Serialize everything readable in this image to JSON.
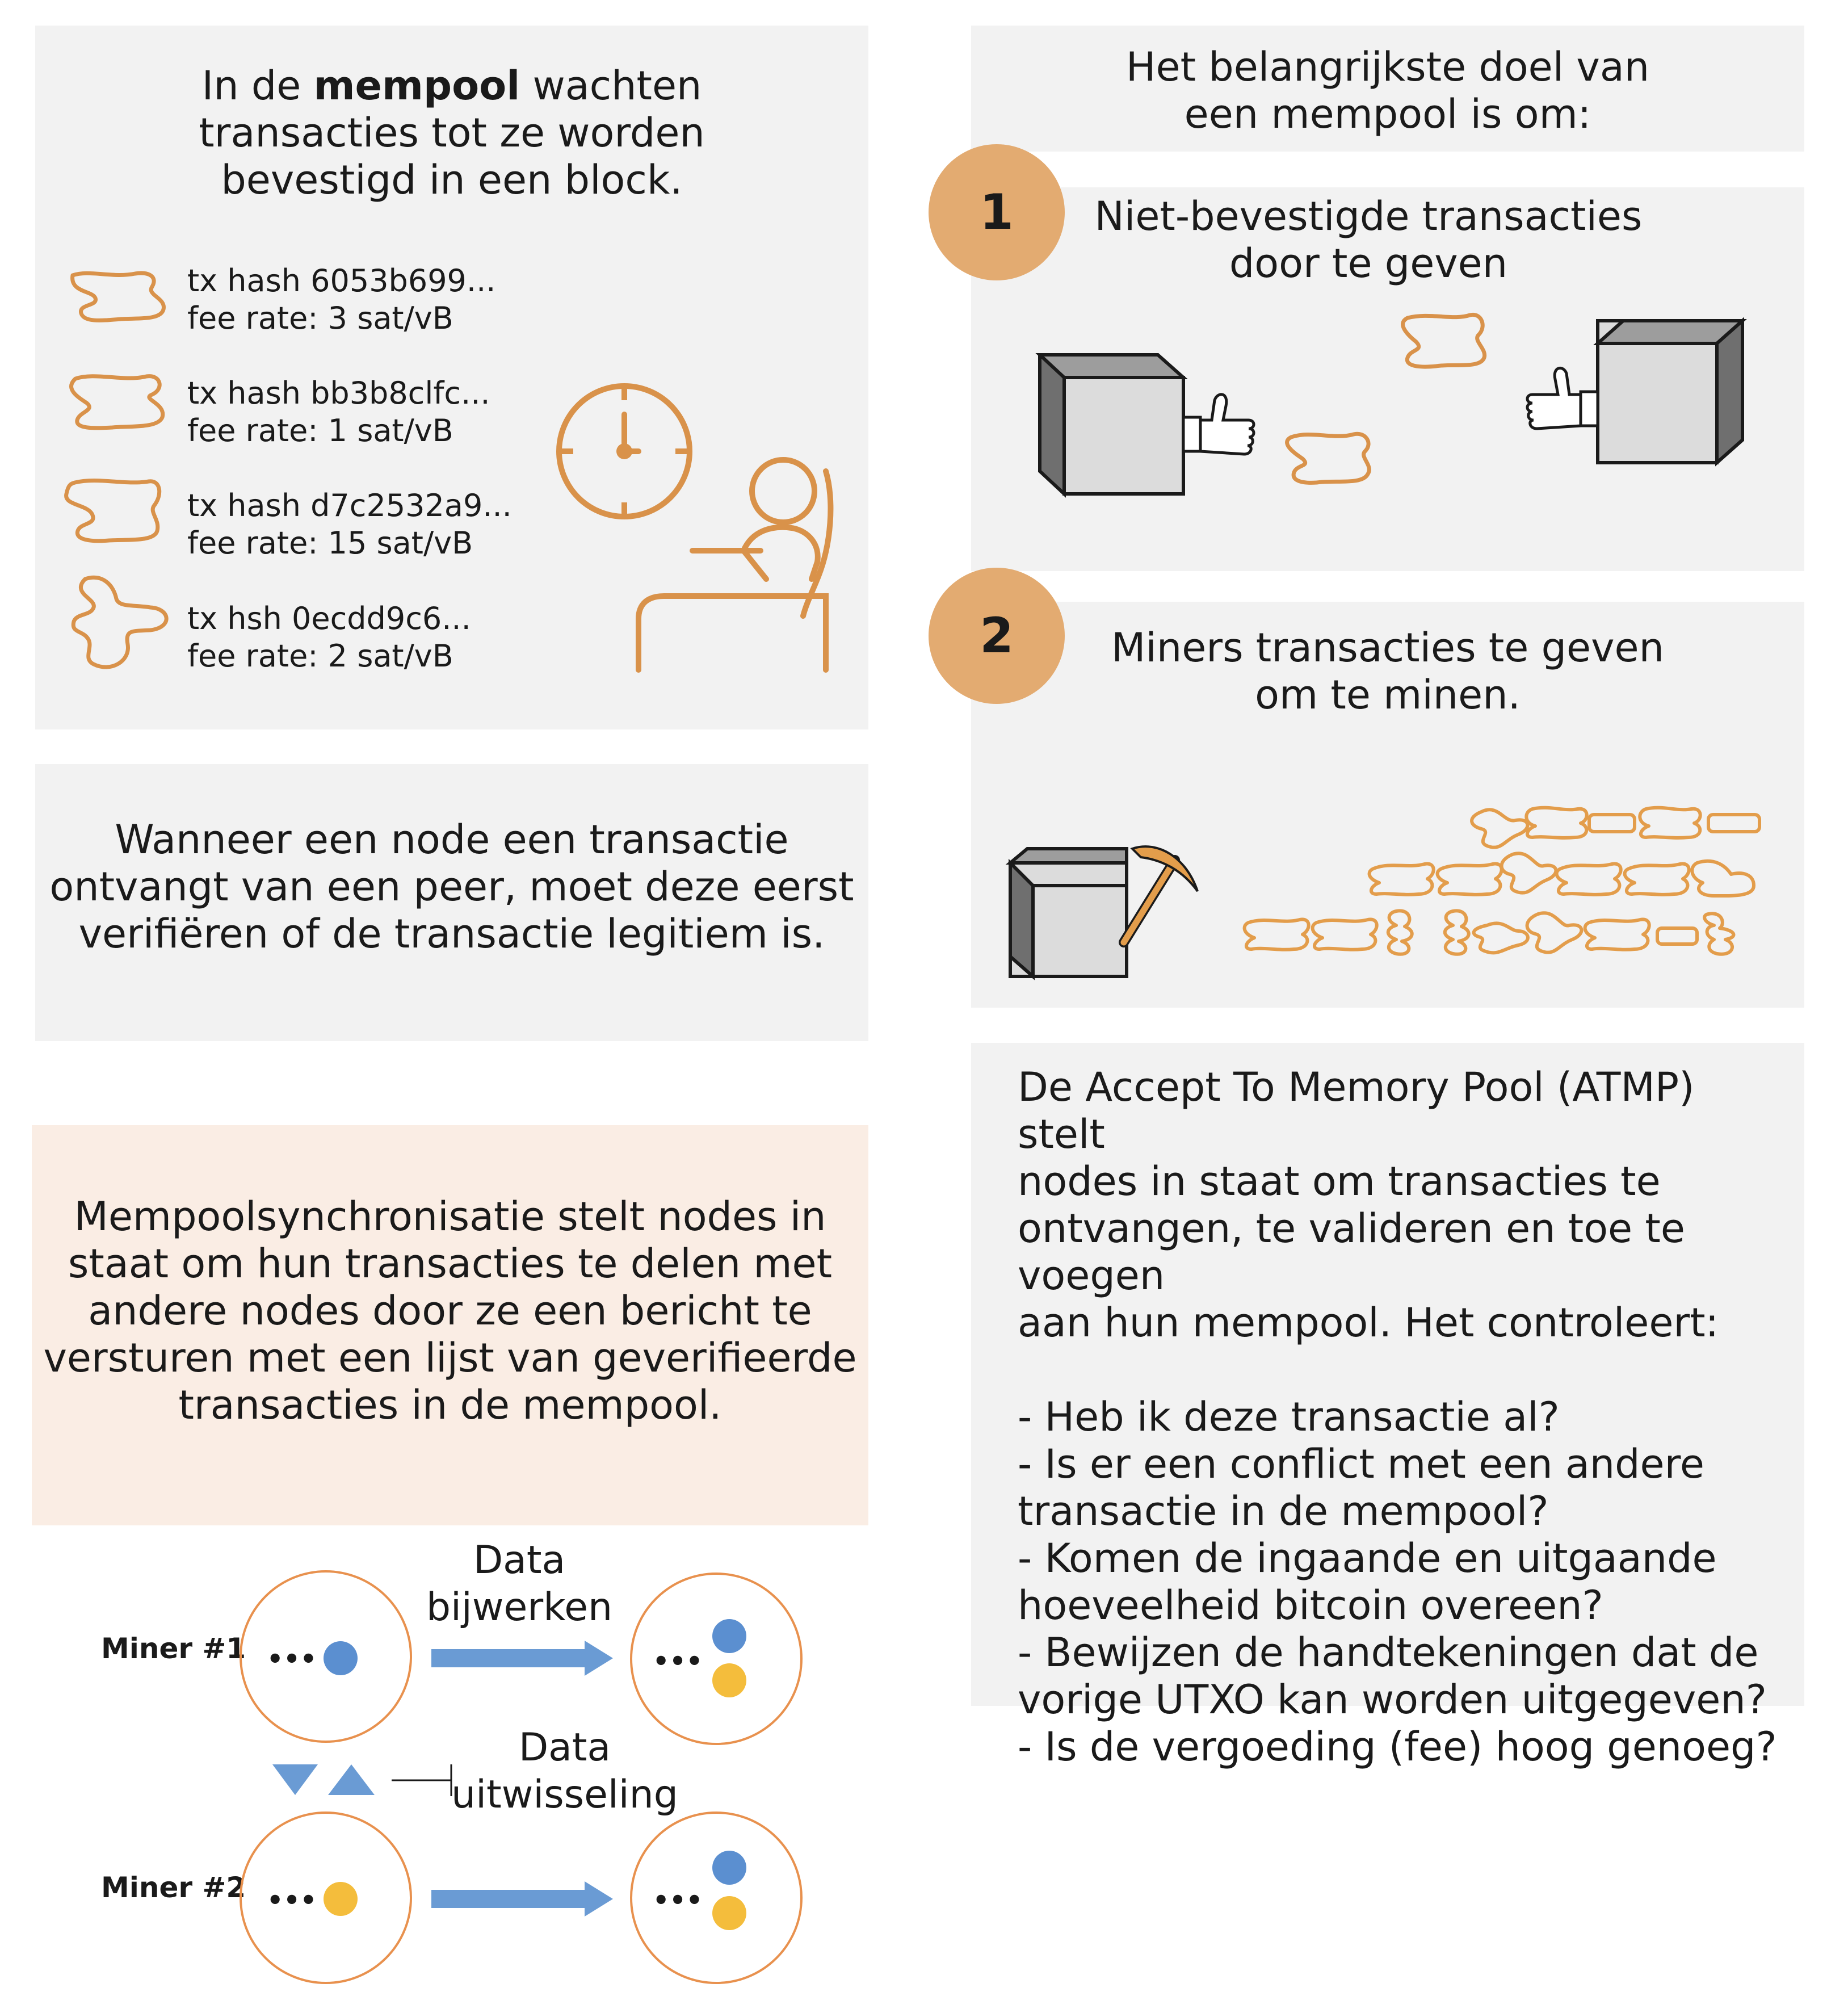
{
  "mempool_panel": {
    "title_before": "In de ",
    "title_bold": "mempool",
    "title_after": " wachten",
    "title_line2": "transacties tot ze worden",
    "title_line3": "bevestigd in een block.",
    "transactions": [
      {
        "hash": "tx hash 6053b699...",
        "fee": "fee rate: 3 sat/vB"
      },
      {
        "hash": "tx hash bb3b8clfc...",
        "fee": "fee rate: 1 sat/vB"
      },
      {
        "hash": "tx hash d7c2532a9...",
        "fee": "fee rate: 15 sat/vB"
      },
      {
        "hash": "tx hsh 0ecdd9c6...",
        "fee": "fee rate: 2 sat/vB"
      }
    ]
  },
  "verify_panel": {
    "lines": [
      "Wanneer een node een transactie",
      "ontvangt van een peer, moet deze eerst",
      "verifiëren of de transactie legitiem is."
    ]
  },
  "sync_panel": {
    "lines": [
      "Mempoolsynchronisatie stelt nodes in",
      "staat om hun transacties te delen met",
      "andere nodes door ze een bericht te",
      "versturen met een lijst van geverifieerde",
      "transacties in de mempool."
    ]
  },
  "goal_panel": {
    "lines": [
      "Het belangrijkste doel van",
      "een mempool is om:"
    ]
  },
  "step1": {
    "number": "1",
    "lines": [
      "Niet-bevestigde transacties",
      "door te geven"
    ]
  },
  "step2": {
    "number": "2",
    "lines": [
      "Miners transacties te geven",
      "om te minen."
    ]
  },
  "atmp_panel": {
    "lines": [
      "De Accept To Memory Pool (ATMP) stelt",
      "nodes in staat om transacties te",
      "ontvangen, te valideren en toe te voegen",
      "aan hun mempool. Het controleert:",
      "",
      "- Heb ik deze transactie al?",
      "- Is er een conflict met een andere",
      "transactie in de mempool?",
      "- Komen de ingaande en uitgaande",
      "hoeveelheid bitcoin overeen?",
      "- Bewijzen de handtekeningen dat de",
      "vorige UTXO kan worden uitgegeven?",
      "- Is de vergoeding (fee) hoog genoeg?"
    ]
  },
  "sync_diagram": {
    "miner1_label": "Miner #1",
    "miner2_label": "Miner #2",
    "update_label_line1": "Data",
    "update_label_line2": "bijwerken",
    "exchange_label_line1": "Data",
    "exchange_label_line2": "uitwisseling",
    "ellipsis": "•••"
  },
  "colors": {
    "panel_gray": "#f2f2f2",
    "panel_peach": "#faede4",
    "accent_orange": "#e3ab71",
    "icon_orange": "#d9924a",
    "dot_blue": "#5b8fd0",
    "dot_yellow": "#f4bd3c",
    "arrow_blue": "#6a9bd4",
    "circle_orange": "#e8914e"
  }
}
